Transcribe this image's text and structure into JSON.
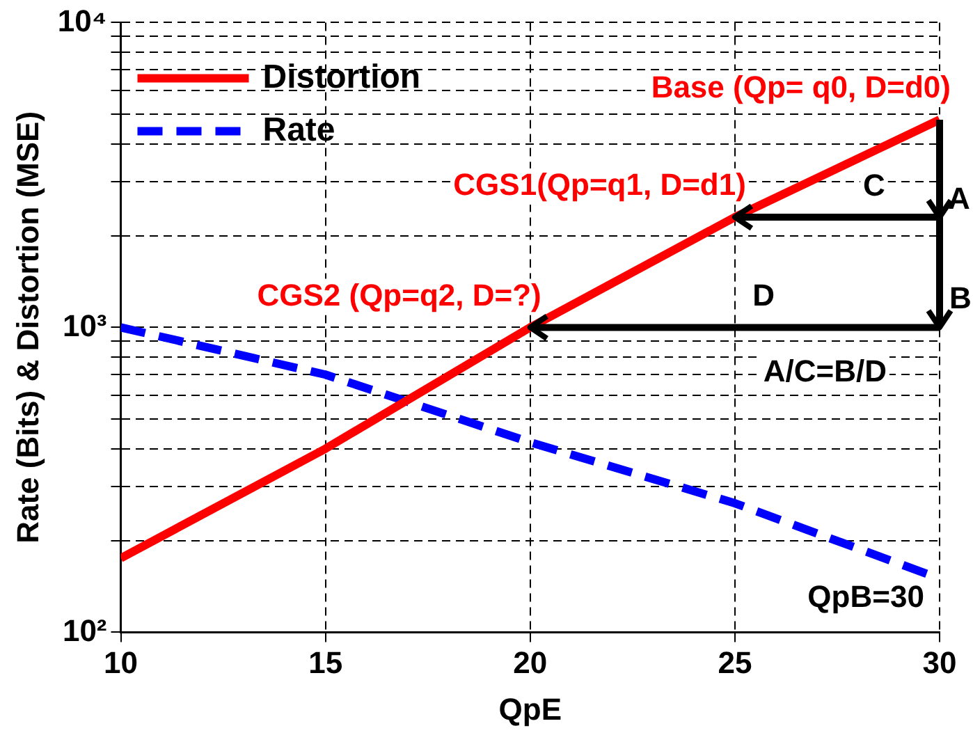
{
  "chart_data": {
    "type": "line",
    "xlabel": "QpE",
    "ylabel": "Rate (Bits) & Distortion (MSE)",
    "x": [
      10,
      15,
      20,
      25,
      30
    ],
    "series": [
      {
        "name": "Distortion",
        "color": "#ff0000",
        "values": [
          175,
          400,
          1000,
          2300,
          4800
        ],
        "line_style": "solid"
      },
      {
        "name": "Rate",
        "color": "#0000ff",
        "values": [
          1000,
          700,
          420,
          265,
          150
        ],
        "line_style": "dashed"
      }
    ],
    "xlim": [
      10,
      30
    ],
    "xticks": [
      10,
      15,
      20,
      25,
      30
    ],
    "ylim": [
      100,
      10000
    ],
    "yticks": [
      {
        "value": 100,
        "label": "10²"
      },
      {
        "value": 200,
        "label": null
      },
      {
        "value": 300,
        "label": null
      },
      {
        "value": 400,
        "label": null
      },
      {
        "value": 500,
        "label": null
      },
      {
        "value": 600,
        "label": null
      },
      {
        "value": 700,
        "label": null
      },
      {
        "value": 800,
        "label": null
      },
      {
        "value": 900,
        "label": null
      },
      {
        "value": 1000,
        "label": "10³"
      },
      {
        "value": 2000,
        "label": null
      },
      {
        "value": 3000,
        "label": null
      },
      {
        "value": 4000,
        "label": null
      },
      {
        "value": 5000,
        "label": null
      },
      {
        "value": 6000,
        "label": null
      },
      {
        "value": 7000,
        "label": null
      },
      {
        "value": 8000,
        "label": null
      },
      {
        "value": 9000,
        "label": null
      },
      {
        "value": 10000,
        "label": "10⁴"
      }
    ],
    "log": "y",
    "grid": true,
    "legend": "top left",
    "marker": "none",
    "annotations": [
      {
        "text": "Base (Qp= q0, D=d0)",
        "x": 30,
        "y": 4800
      },
      {
        "text": "CGS1(Qp=q1, D=d1)",
        "x": 25,
        "y": 2300
      },
      {
        "text": "CGS2 (Qp=q2, D=?)",
        "x": 20,
        "y": 1000
      },
      {
        "text": "A",
        "x": 30,
        "y": 4800
      },
      "B",
      "C",
      "D",
      "A/C=B/D",
      "QpB=30"
    ]
  }
}
